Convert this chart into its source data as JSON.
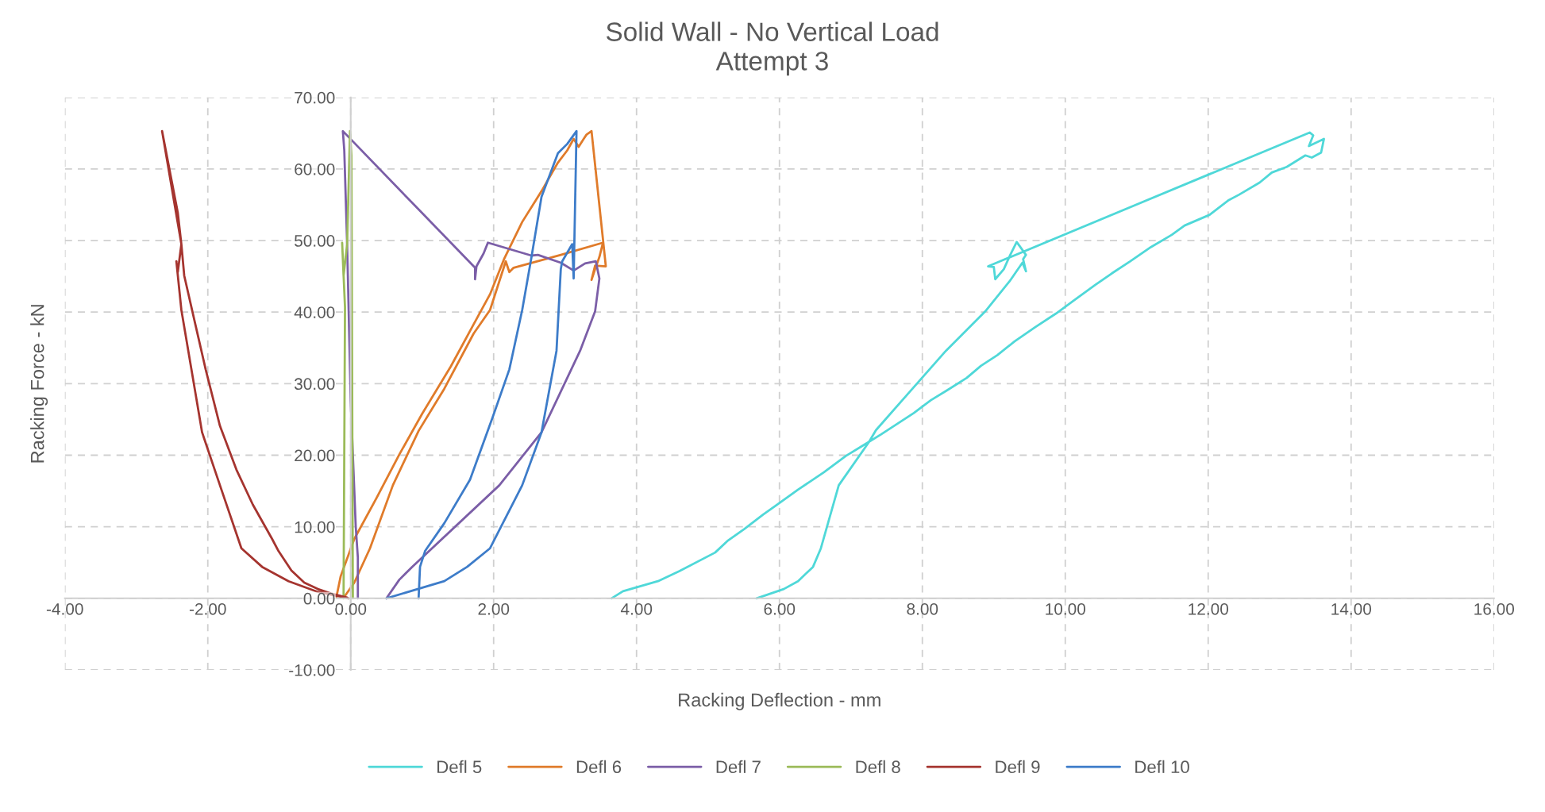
{
  "chart_data": {
    "type": "line",
    "title": "Solid Wall - No Vertical Load",
    "subtitle": "Attempt 3",
    "xlabel": "Racking Deflection - mm",
    "ylabel": "Racking Force - kN",
    "xlim": [
      -4,
      16
    ],
    "ylim": [
      -10,
      70
    ],
    "xticks": [
      {
        "value": -4,
        "label": "-4.00"
      },
      {
        "value": -2,
        "label": "-2.00"
      },
      {
        "value": 0,
        "label": "0.00"
      },
      {
        "value": 2,
        "label": "2.00"
      },
      {
        "value": 4,
        "label": "4.00"
      },
      {
        "value": 6,
        "label": "6.00"
      },
      {
        "value": 8,
        "label": "8.00"
      },
      {
        "value": 10,
        "label": "10.00"
      },
      {
        "value": 12,
        "label": "12.00"
      },
      {
        "value": 14,
        "label": "14.00"
      },
      {
        "value": 16,
        "label": "16.00"
      }
    ],
    "yticks": [
      {
        "value": -10,
        "label": "-10.00"
      },
      {
        "value": 0,
        "label": "0.00"
      },
      {
        "value": 10,
        "label": "10.00"
      },
      {
        "value": 20,
        "label": "20.00"
      },
      {
        "value": 30,
        "label": "30.00"
      },
      {
        "value": 40,
        "label": "40.00"
      },
      {
        "value": 50,
        "label": "50.00"
      },
      {
        "value": 60,
        "label": "60.00"
      },
      {
        "value": 70,
        "label": "70.00"
      }
    ],
    "grid": true,
    "legend": "bottom",
    "marker": "none",
    "line_style": "solid",
    "series": [
      {
        "name": "Defl 5",
        "color": "#4fd8d8",
        "x": [
          5.68,
          6.06,
          6.26,
          6.47,
          6.58,
          6.83,
          7.25,
          7.35,
          7.72,
          8.33,
          8.88,
          9.22,
          9.4,
          9.45,
          9.41,
          9.45,
          9.32,
          9.23,
          9.14,
          9.02,
          9.0,
          8.92,
          13.42,
          13.47,
          13.41,
          13.62,
          13.58,
          13.45,
          13.36,
          13.1,
          12.89,
          12.72,
          12.43,
          12.28,
          12.02,
          11.67,
          11.49,
          11.2,
          10.91,
          10.65,
          10.42,
          10.13,
          9.87,
          9.58,
          9.29,
          9.05,
          8.82,
          8.62,
          8.35,
          8.12,
          7.88,
          7.42,
          7.16,
          6.93,
          6.62,
          6.26,
          5.97,
          5.77,
          5.51,
          5.27,
          5.1,
          4.6,
          4.3,
          3.81,
          3.65
        ],
        "values": [
          0,
          1.3,
          2.4,
          4.4,
          7.0,
          15.8,
          21.8,
          23.5,
          27.7,
          34.6,
          40.1,
          44.3,
          46.9,
          45.7,
          47.4,
          48.0,
          49.8,
          48.0,
          46.0,
          44.6,
          46.3,
          46.4,
          65.1,
          64.7,
          63.2,
          64.2,
          62.3,
          61.6,
          61.9,
          60.3,
          59.5,
          58.1,
          56.4,
          55.6,
          53.6,
          52.1,
          50.8,
          49.1,
          47.1,
          45.4,
          43.8,
          41.7,
          39.8,
          37.9,
          35.9,
          34.0,
          32.5,
          30.8,
          29.1,
          27.7,
          25.9,
          22.9,
          21.3,
          19.9,
          17.6,
          15.2,
          13.1,
          11.7,
          9.7,
          8.0,
          6.4,
          3.8,
          2.4,
          1.0,
          0
        ]
      },
      {
        "name": "Defl 6",
        "color": "#e07b2a",
        "x": [
          -0.09,
          0.05,
          0.27,
          0.59,
          0.95,
          1.31,
          1.72,
          1.95,
          2.17,
          2.22,
          2.28,
          2.94,
          3.53,
          3.48,
          3.42,
          3.37,
          3.42,
          3.57,
          3.37,
          3.3,
          3.26,
          3.19,
          3.12,
          3.03,
          2.9,
          2.67,
          2.4,
          2.15,
          1.95,
          1.72,
          1.4,
          1.0,
          0.68,
          0.36,
          0.05,
          -0.14,
          -0.2
        ],
        "values": [
          0.2,
          2.2,
          7.0,
          15.8,
          23.4,
          29.3,
          37.0,
          40.3,
          47.1,
          45.6,
          46.2,
          48.0,
          49.7,
          47.7,
          46.0,
          44.5,
          46.5,
          46.4,
          65.3,
          64.8,
          64.2,
          63.1,
          64.2,
          62.6,
          60.9,
          56.9,
          52.6,
          47.5,
          42.5,
          38.3,
          32.4,
          25.8,
          20.1,
          14.0,
          8.3,
          3.1,
          0.2
        ]
      },
      {
        "name": "Defl 7",
        "color": "#7b5ea7",
        "x": [
          0.5,
          0.68,
          0.86,
          2.08,
          2.67,
          3.21,
          3.42,
          3.48,
          3.43,
          3.28,
          3.12,
          2.94,
          2.62,
          2.53,
          1.92,
          1.86,
          1.76,
          1.74,
          1.74,
          -0.11,
          -0.09,
          -0.05,
          0.0,
          0.07,
          0.1,
          0.1
        ],
        "values": [
          0,
          2.6,
          4.4,
          15.8,
          23.2,
          34.6,
          40.1,
          44.7,
          47.1,
          46.8,
          45.8,
          46.9,
          48.0,
          47.9,
          49.7,
          48.2,
          46.4,
          44.6,
          46.2,
          65.3,
          62.6,
          49.5,
          27.6,
          10.1,
          5.7,
          0
        ]
      },
      {
        "name": "Defl 8",
        "color": "#9bbb59",
        "x": [
          -0.1,
          -0.08,
          -0.12,
          -0.1,
          -0.05,
          -0.01,
          0.01,
          0.03
        ],
        "values": [
          0,
          40.7,
          49.7,
          45.1,
          49.5,
          65.3,
          61.8,
          0
        ]
      },
      {
        "name": "Defl 9",
        "color": "#a5342f",
        "x": [
          -0.03,
          -0.46,
          -0.87,
          -1.24,
          -1.53,
          -1.83,
          -2.08,
          -2.37,
          -2.44,
          -2.42,
          -2.37,
          -2.42,
          -2.64,
          -2.37,
          -2.33,
          -2.17,
          -2.03,
          -1.83,
          -1.6,
          -1.37,
          -1.1,
          -1.01,
          -0.83,
          -0.65,
          -0.46,
          -0.28,
          -0.05
        ],
        "values": [
          0,
          0.9,
          2.4,
          4.4,
          7.0,
          15.8,
          23.2,
          40.3,
          47.1,
          45.6,
          49.5,
          53.9,
          65.3,
          49.5,
          45.1,
          38.1,
          32.0,
          24.1,
          18.0,
          13.1,
          8.3,
          6.6,
          3.9,
          2.2,
          1.3,
          0.7,
          0.1
        ]
      },
      {
        "name": "Defl 10",
        "color": "#3d7cc9",
        "x": [
          0.95,
          0.97,
          1.04,
          1.31,
          1.67,
          1.99,
          2.22,
          2.4,
          2.53,
          2.67,
          2.9,
          3.03,
          3.16,
          3.12,
          3.1,
          2.96,
          2.94,
          2.88,
          2.67,
          2.4,
          1.95,
          1.63,
          1.31,
          0.5
        ],
        "values": [
          0,
          4.4,
          6.6,
          10.5,
          16.6,
          25.4,
          32.0,
          40.3,
          47.7,
          56.1,
          62.2,
          63.5,
          65.3,
          44.7,
          49.5,
          47.1,
          46.0,
          34.6,
          23.2,
          15.8,
          7.0,
          4.4,
          2.4,
          0
        ]
      }
    ]
  }
}
